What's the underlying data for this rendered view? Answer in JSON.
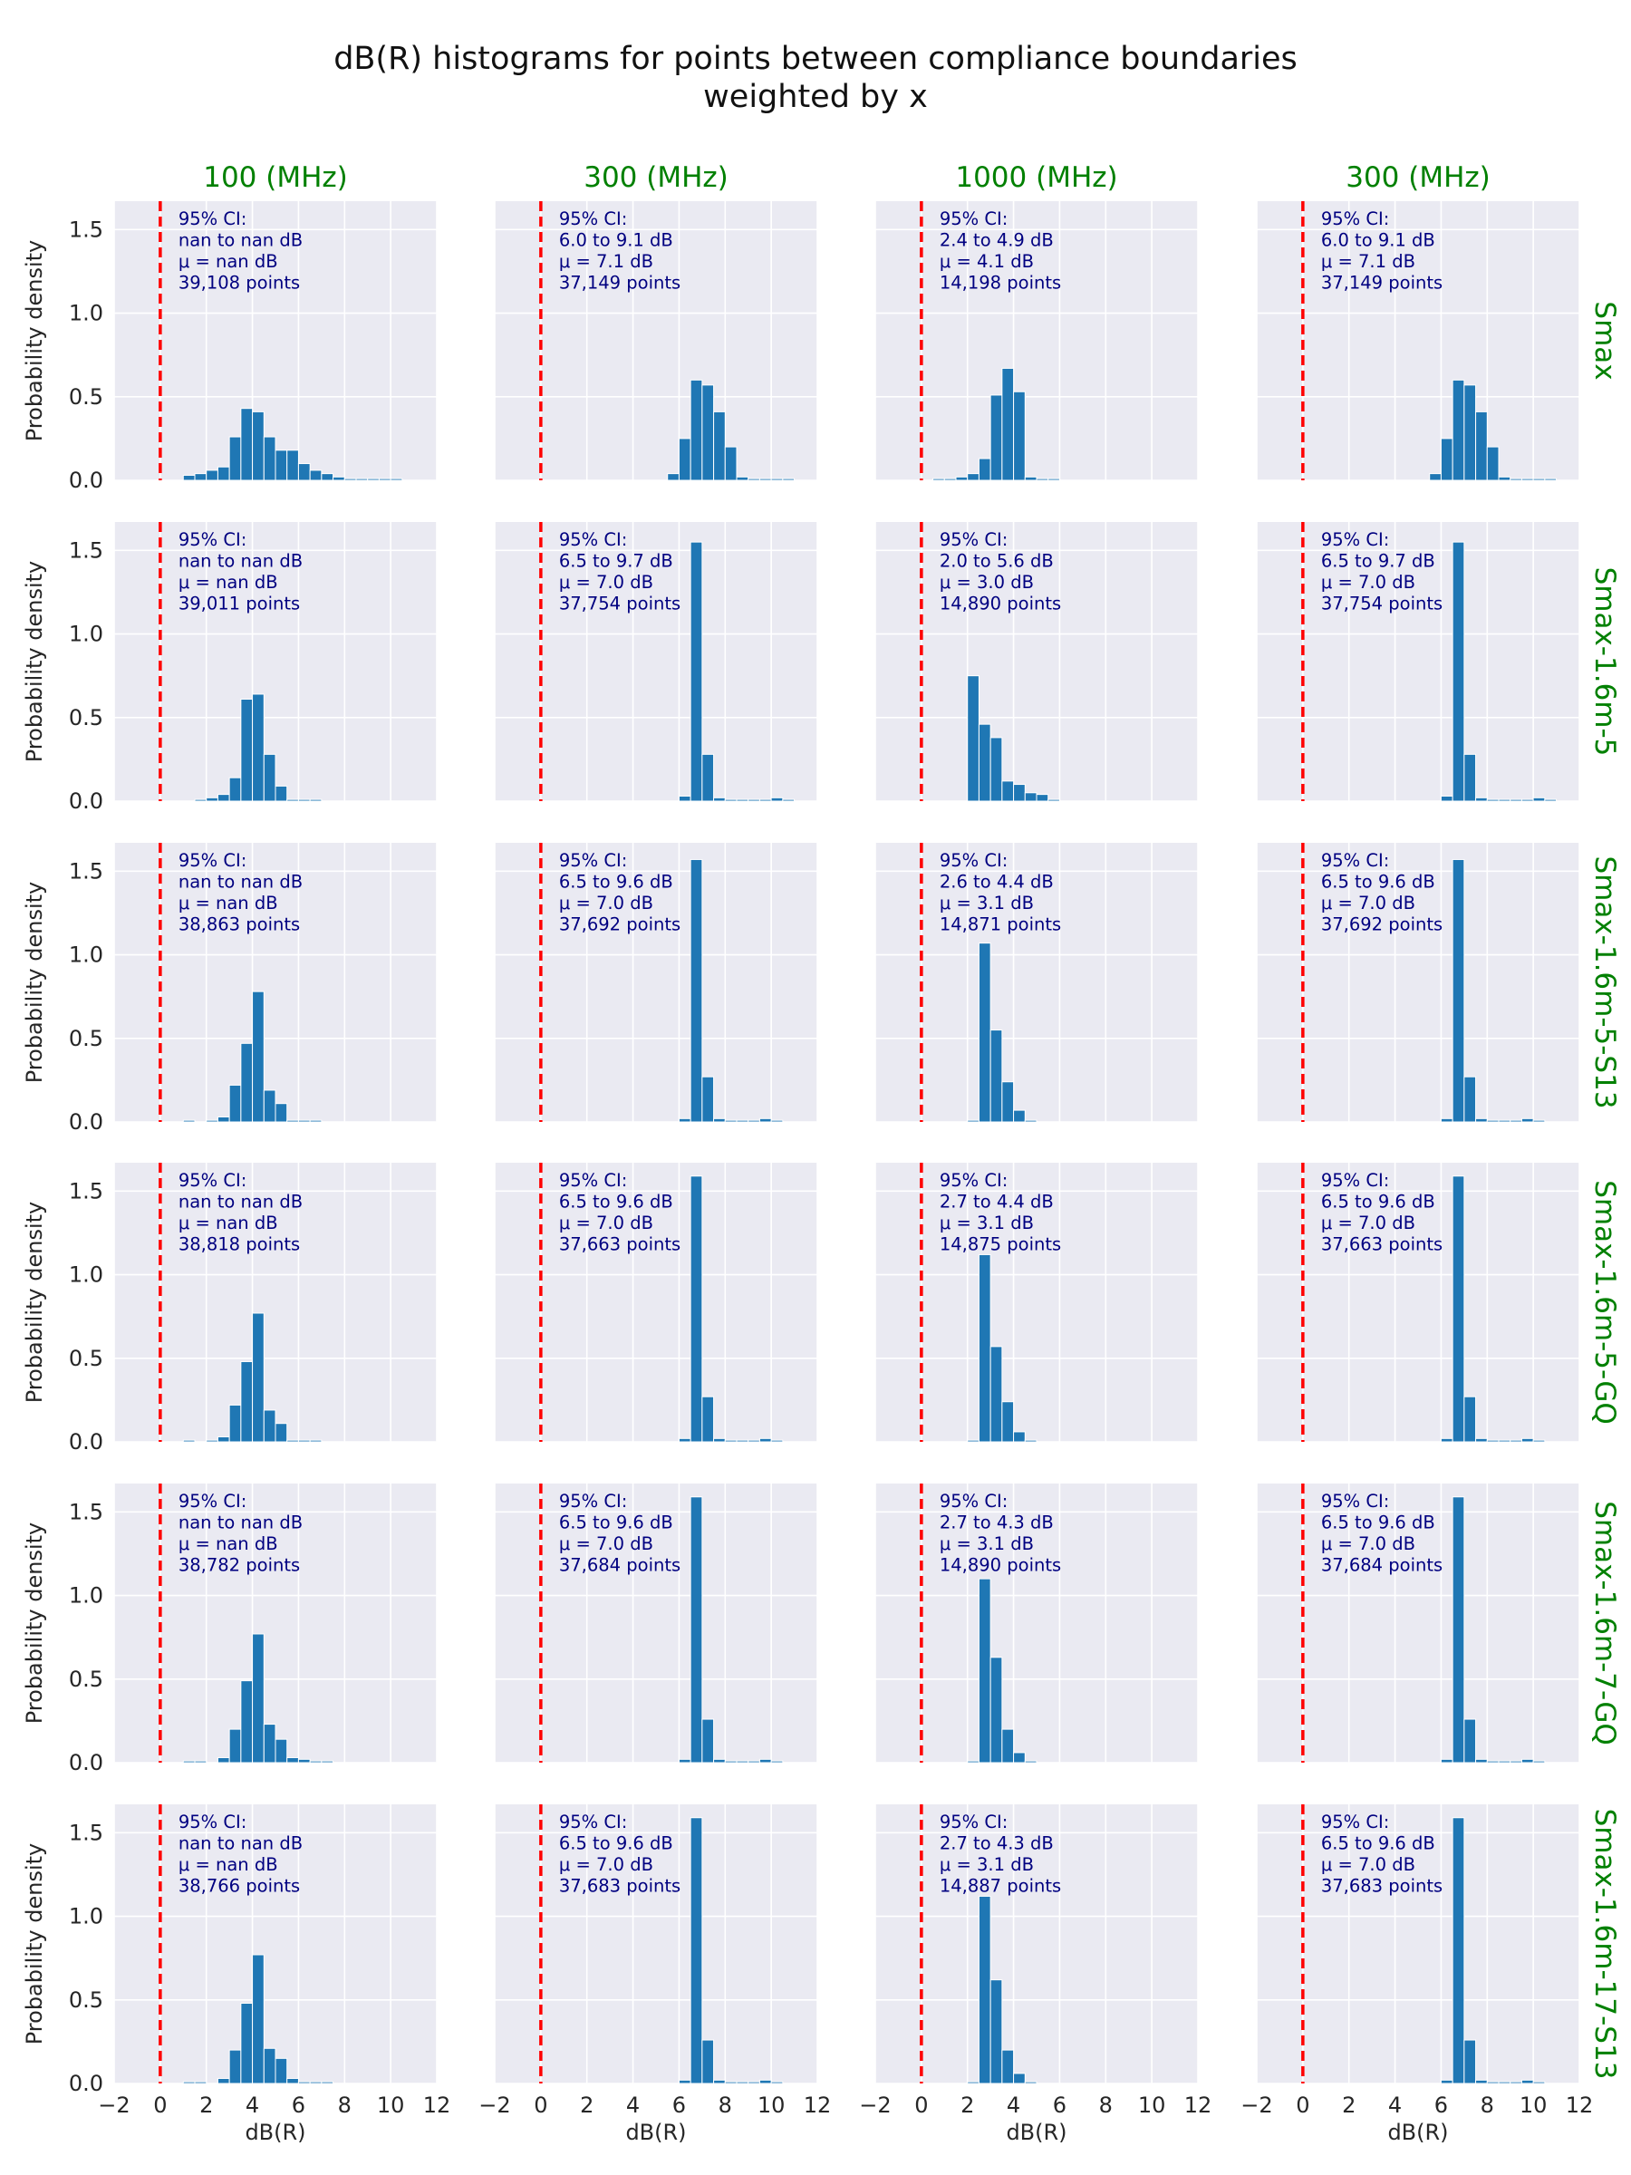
{
  "title": [
    "dB(R) histograms for points between compliance boundaries",
    "weighted by x"
  ],
  "colors": {
    "bar": "#1f77b4",
    "background": "#eaeaf2",
    "grid": "#ffffff",
    "threshold_line": "#ff0000",
    "header_text": "#008000",
    "annotation_text": "#000080"
  },
  "chart_data": {
    "type": "bar",
    "layout": "grid 6 rows x 4 columns, shared axes",
    "column_titles": [
      "100 (MHz)",
      "300 (MHz)",
      "1000 (MHz)",
      "300 (MHz)"
    ],
    "row_titles": [
      "Smax",
      "Smax-1.6m-5",
      "Smax-1.6m-5-S13",
      "Smax-1.6m-5-GQ",
      "Smax-1.6m-7-GQ",
      "Smax-1.6m-17-S13"
    ],
    "xlabel": "dB(R)",
    "ylabel": "Probability density",
    "xlim": [
      -2,
      12
    ],
    "ylim": [
      0,
      1.67
    ],
    "xticks": [
      "−2",
      "0",
      "2",
      "4",
      "6",
      "8",
      "10",
      "12"
    ],
    "yticks": [
      "0.0",
      "0.5",
      "1.0",
      "1.5"
    ],
    "threshold_line_x": 0,
    "grid": true,
    "bin_width": 0.5,
    "annotation_label": "95% CI:",
    "panels": [
      {
        "row": 0,
        "col": 0,
        "ci": "nan to nan dB",
        "mu": "μ = nan dB",
        "n": "39,108 points",
        "bins": [
          [
            1,
            0.03
          ],
          [
            1.5,
            0.04
          ],
          [
            2,
            0.06
          ],
          [
            2.5,
            0.08
          ],
          [
            3,
            0.26
          ],
          [
            3.5,
            0.43
          ],
          [
            4,
            0.41
          ],
          [
            4.5,
            0.26
          ],
          [
            5,
            0.18
          ],
          [
            5.5,
            0.18
          ],
          [
            6,
            0.1
          ],
          [
            6.5,
            0.06
          ],
          [
            7,
            0.04
          ],
          [
            7.5,
            0.02
          ],
          [
            8,
            0.01
          ],
          [
            8.5,
            0.01
          ],
          [
            9,
            0.01
          ],
          [
            9.5,
            0.01
          ],
          [
            10,
            0.01
          ]
        ]
      },
      {
        "row": 0,
        "col": 1,
        "ci": "6.0 to 9.1 dB",
        "mu": "μ = 7.1 dB",
        "n": "37,149 points",
        "bins": [
          [
            5.5,
            0.04
          ],
          [
            6,
            0.25
          ],
          [
            6.5,
            0.6
          ],
          [
            7,
            0.57
          ],
          [
            7.5,
            0.41
          ],
          [
            8,
            0.2
          ],
          [
            8.5,
            0.02
          ],
          [
            9,
            0.01
          ],
          [
            9.5,
            0.01
          ],
          [
            10,
            0.01
          ],
          [
            10.5,
            0.01
          ]
        ]
      },
      {
        "row": 0,
        "col": 2,
        "ci": "2.4 to 4.9 dB",
        "mu": "μ = 4.1 dB",
        "n": "14,198 points",
        "bins": [
          [
            0.5,
            0.01
          ],
          [
            1,
            0.01
          ],
          [
            1.5,
            0.02
          ],
          [
            2,
            0.04
          ],
          [
            2.5,
            0.13
          ],
          [
            3,
            0.51
          ],
          [
            3.5,
            0.67
          ],
          [
            4,
            0.53
          ],
          [
            4.5,
            0.02
          ],
          [
            5,
            0.01
          ],
          [
            5.5,
            0.01
          ]
        ]
      },
      {
        "row": 0,
        "col": 3,
        "ci": "6.0 to 9.1 dB",
        "mu": "μ = 7.1 dB",
        "n": "37,149 points",
        "bins": [
          [
            5.5,
            0.04
          ],
          [
            6,
            0.25
          ],
          [
            6.5,
            0.6
          ],
          [
            7,
            0.57
          ],
          [
            7.5,
            0.41
          ],
          [
            8,
            0.2
          ],
          [
            8.5,
            0.02
          ],
          [
            9,
            0.01
          ],
          [
            9.5,
            0.01
          ],
          [
            10,
            0.01
          ],
          [
            10.5,
            0.01
          ]
        ]
      },
      {
        "row": 1,
        "col": 0,
        "ci": "nan to nan dB",
        "mu": "μ = nan dB",
        "n": "39,011 points",
        "bins": [
          [
            1.5,
            0.01
          ],
          [
            2,
            0.02
          ],
          [
            2.5,
            0.04
          ],
          [
            3,
            0.14
          ],
          [
            3.5,
            0.61
          ],
          [
            4,
            0.64
          ],
          [
            4.5,
            0.28
          ],
          [
            5,
            0.09
          ],
          [
            5.5,
            0.01
          ],
          [
            6,
            0.01
          ],
          [
            6.5,
            0.01
          ]
        ]
      },
      {
        "row": 1,
        "col": 1,
        "ci": "6.5 to 9.7 dB",
        "mu": "μ = 7.0 dB",
        "n": "37,754 points",
        "bins": [
          [
            6,
            0.03
          ],
          [
            6.5,
            1.55
          ],
          [
            7,
            0.28
          ],
          [
            7.5,
            0.02
          ],
          [
            8,
            0.01
          ],
          [
            8.5,
            0.01
          ],
          [
            9,
            0.01
          ],
          [
            9.5,
            0.01
          ],
          [
            10,
            0.02
          ],
          [
            10.5,
            0.01
          ]
        ]
      },
      {
        "row": 1,
        "col": 2,
        "ci": "2.0 to 5.6 dB",
        "mu": "μ = 3.0 dB",
        "n": "14,890 points",
        "bins": [
          [
            2,
            0.75
          ],
          [
            2.5,
            0.46
          ],
          [
            3,
            0.38
          ],
          [
            3.5,
            0.12
          ],
          [
            4,
            0.1
          ],
          [
            4.5,
            0.05
          ],
          [
            5,
            0.04
          ],
          [
            5.5,
            0.01
          ]
        ]
      },
      {
        "row": 1,
        "col": 3,
        "ci": "6.5 to 9.7 dB",
        "mu": "μ = 7.0 dB",
        "n": "37,754 points",
        "bins": [
          [
            6,
            0.03
          ],
          [
            6.5,
            1.55
          ],
          [
            7,
            0.28
          ],
          [
            7.5,
            0.02
          ],
          [
            8,
            0.01
          ],
          [
            8.5,
            0.01
          ],
          [
            9,
            0.01
          ],
          [
            9.5,
            0.01
          ],
          [
            10,
            0.02
          ],
          [
            10.5,
            0.01
          ]
        ]
      },
      {
        "row": 2,
        "col": 0,
        "ci": "nan to nan dB",
        "mu": "μ = nan dB",
        "n": "38,863 points",
        "bins": [
          [
            1,
            0.01
          ],
          [
            2,
            0.01
          ],
          [
            2.5,
            0.03
          ],
          [
            3,
            0.22
          ],
          [
            3.5,
            0.47
          ],
          [
            4,
            0.78
          ],
          [
            4.5,
            0.19
          ],
          [
            5,
            0.11
          ],
          [
            5.5,
            0.01
          ],
          [
            6,
            0.01
          ],
          [
            6.5,
            0.01
          ]
        ]
      },
      {
        "row": 2,
        "col": 1,
        "ci": "6.5 to 9.6 dB",
        "mu": "μ = 7.0 dB",
        "n": "37,692 points",
        "bins": [
          [
            6,
            0.02
          ],
          [
            6.5,
            1.57
          ],
          [
            7,
            0.27
          ],
          [
            7.5,
            0.02
          ],
          [
            8,
            0.01
          ],
          [
            8.5,
            0.01
          ],
          [
            9,
            0.01
          ],
          [
            9.5,
            0.02
          ],
          [
            10,
            0.01
          ]
        ]
      },
      {
        "row": 2,
        "col": 2,
        "ci": "2.6 to 4.4 dB",
        "mu": "μ = 3.1 dB",
        "n": "14,871 points",
        "bins": [
          [
            2,
            0.01
          ],
          [
            2.5,
            1.07
          ],
          [
            3,
            0.55
          ],
          [
            3.5,
            0.24
          ],
          [
            4,
            0.07
          ],
          [
            4.5,
            0.01
          ]
        ]
      },
      {
        "row": 2,
        "col": 3,
        "ci": "6.5 to 9.6 dB",
        "mu": "μ = 7.0 dB",
        "n": "37,692 points",
        "bins": [
          [
            6,
            0.02
          ],
          [
            6.5,
            1.57
          ],
          [
            7,
            0.27
          ],
          [
            7.5,
            0.02
          ],
          [
            8,
            0.01
          ],
          [
            8.5,
            0.01
          ],
          [
            9,
            0.01
          ],
          [
            9.5,
            0.02
          ],
          [
            10,
            0.01
          ]
        ]
      },
      {
        "row": 3,
        "col": 0,
        "ci": "nan to nan dB",
        "mu": "μ = nan dB",
        "n": "38,818 points",
        "bins": [
          [
            1,
            0.01
          ],
          [
            2,
            0.01
          ],
          [
            2.5,
            0.03
          ],
          [
            3,
            0.22
          ],
          [
            3.5,
            0.48
          ],
          [
            4,
            0.77
          ],
          [
            4.5,
            0.19
          ],
          [
            5,
            0.11
          ],
          [
            5.5,
            0.01
          ],
          [
            6,
            0.01
          ],
          [
            6.5,
            0.01
          ]
        ]
      },
      {
        "row": 3,
        "col": 1,
        "ci": "6.5 to 9.6 dB",
        "mu": "μ = 7.0 dB",
        "n": "37,663 points",
        "bins": [
          [
            6,
            0.02
          ],
          [
            6.5,
            1.59
          ],
          [
            7,
            0.27
          ],
          [
            7.5,
            0.02
          ],
          [
            8,
            0.01
          ],
          [
            8.5,
            0.01
          ],
          [
            9,
            0.01
          ],
          [
            9.5,
            0.02
          ],
          [
            10,
            0.01
          ]
        ]
      },
      {
        "row": 3,
        "col": 2,
        "ci": "2.7 to 4.4 dB",
        "mu": "μ = 3.1 dB",
        "n": "14,875 points",
        "bins": [
          [
            2,
            0.01
          ],
          [
            2.5,
            1.12
          ],
          [
            3,
            0.57
          ],
          [
            3.5,
            0.24
          ],
          [
            4,
            0.06
          ],
          [
            4.5,
            0.01
          ]
        ]
      },
      {
        "row": 3,
        "col": 3,
        "ci": "6.5 to 9.6 dB",
        "mu": "μ = 7.0 dB",
        "n": "37,663 points",
        "bins": [
          [
            6,
            0.02
          ],
          [
            6.5,
            1.59
          ],
          [
            7,
            0.27
          ],
          [
            7.5,
            0.02
          ],
          [
            8,
            0.01
          ],
          [
            8.5,
            0.01
          ],
          [
            9,
            0.01
          ],
          [
            9.5,
            0.02
          ],
          [
            10,
            0.01
          ]
        ]
      },
      {
        "row": 4,
        "col": 0,
        "ci": "nan to nan dB",
        "mu": "μ = nan dB",
        "n": "38,782 points",
        "bins": [
          [
            1,
            0.01
          ],
          [
            1.5,
            0.01
          ],
          [
            2.5,
            0.03
          ],
          [
            3,
            0.2
          ],
          [
            3.5,
            0.49
          ],
          [
            4,
            0.77
          ],
          [
            4.5,
            0.23
          ],
          [
            5,
            0.14
          ],
          [
            5.5,
            0.03
          ],
          [
            6,
            0.02
          ],
          [
            6.5,
            0.01
          ],
          [
            7,
            0.01
          ]
        ]
      },
      {
        "row": 4,
        "col": 1,
        "ci": "6.5 to 9.6 dB",
        "mu": "μ = 7.0 dB",
        "n": "37,684 points",
        "bins": [
          [
            6,
            0.02
          ],
          [
            6.5,
            1.59
          ],
          [
            7,
            0.26
          ],
          [
            7.5,
            0.02
          ],
          [
            8,
            0.01
          ],
          [
            8.5,
            0.01
          ],
          [
            9,
            0.01
          ],
          [
            9.5,
            0.02
          ],
          [
            10,
            0.01
          ]
        ]
      },
      {
        "row": 4,
        "col": 2,
        "ci": "2.7 to 4.3 dB",
        "mu": "μ = 3.1 dB",
        "n": "14,890 points",
        "bins": [
          [
            2,
            0.01
          ],
          [
            2.5,
            1.1
          ],
          [
            3,
            0.63
          ],
          [
            3.5,
            0.2
          ],
          [
            4,
            0.06
          ],
          [
            4.5,
            0.01
          ]
        ]
      },
      {
        "row": 4,
        "col": 3,
        "ci": "6.5 to 9.6 dB",
        "mu": "μ = 7.0 dB",
        "n": "37,684 points",
        "bins": [
          [
            6,
            0.02
          ],
          [
            6.5,
            1.59
          ],
          [
            7,
            0.26
          ],
          [
            7.5,
            0.02
          ],
          [
            8,
            0.01
          ],
          [
            8.5,
            0.01
          ],
          [
            9,
            0.01
          ],
          [
            9.5,
            0.02
          ],
          [
            10,
            0.01
          ]
        ]
      },
      {
        "row": 5,
        "col": 0,
        "ci": "nan to nan dB",
        "mu": "μ = nan dB",
        "n": "38,766 points",
        "bins": [
          [
            1,
            0.01
          ],
          [
            1.5,
            0.01
          ],
          [
            2.5,
            0.03
          ],
          [
            3,
            0.2
          ],
          [
            3.5,
            0.48
          ],
          [
            4,
            0.77
          ],
          [
            4.5,
            0.21
          ],
          [
            5,
            0.15
          ],
          [
            5.5,
            0.03
          ],
          [
            6,
            0.01
          ],
          [
            6.5,
            0.01
          ],
          [
            7,
            0.01
          ]
        ]
      },
      {
        "row": 5,
        "col": 1,
        "ci": "6.5 to 9.6 dB",
        "mu": "μ = 7.0 dB",
        "n": "37,683 points",
        "bins": [
          [
            6,
            0.02
          ],
          [
            6.5,
            1.59
          ],
          [
            7,
            0.26
          ],
          [
            7.5,
            0.02
          ],
          [
            8,
            0.01
          ],
          [
            8.5,
            0.01
          ],
          [
            9,
            0.01
          ],
          [
            9.5,
            0.02
          ],
          [
            10,
            0.01
          ]
        ]
      },
      {
        "row": 5,
        "col": 2,
        "ci": "2.7 to 4.3 dB",
        "mu": "μ = 3.1 dB",
        "n": "14,887 points",
        "bins": [
          [
            2,
            0.01
          ],
          [
            2.5,
            1.12
          ],
          [
            3,
            0.62
          ],
          [
            3.5,
            0.2
          ],
          [
            4,
            0.06
          ],
          [
            4.5,
            0.01
          ]
        ]
      },
      {
        "row": 5,
        "col": 3,
        "ci": "6.5 to 9.6 dB",
        "mu": "μ = 7.0 dB",
        "n": "37,683 points",
        "bins": [
          [
            6,
            0.02
          ],
          [
            6.5,
            1.59
          ],
          [
            7,
            0.26
          ],
          [
            7.5,
            0.02
          ],
          [
            8,
            0.01
          ],
          [
            8.5,
            0.01
          ],
          [
            9,
            0.01
          ],
          [
            9.5,
            0.02
          ],
          [
            10,
            0.01
          ]
        ]
      }
    ]
  }
}
